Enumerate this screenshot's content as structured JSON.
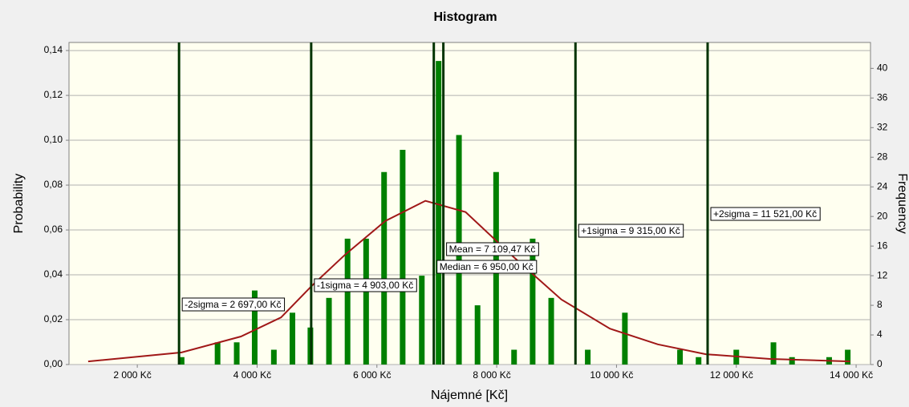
{
  "chart_data": {
    "type": "bar",
    "title": "Histogram",
    "xlabel": "Nájemné [Kč]",
    "ylabel": "Probability",
    "y2label": "Frequency",
    "xlim": [
      860,
      14240
    ],
    "xticks": [
      {
        "value": 2000,
        "label": "2 000 Kč"
      },
      {
        "value": 4000,
        "label": "4 000 Kč"
      },
      {
        "value": 6000,
        "label": "6 000 Kč"
      },
      {
        "value": 8000,
        "label": "8 000 Kč"
      },
      {
        "value": 10000,
        "label": "10 000 Kč"
      },
      {
        "value": 12000,
        "label": "12 000 Kč"
      },
      {
        "value": 14000,
        "label": "14 000 Kč"
      }
    ],
    "ylim": [
      0,
      0.1436
    ],
    "yticks": [
      {
        "value": 0,
        "label": "0,00"
      },
      {
        "value": 0.02,
        "label": "0,02"
      },
      {
        "value": 0.04,
        "label": "0,04"
      },
      {
        "value": 0.06,
        "label": "0,06"
      },
      {
        "value": 0.08,
        "label": "0,08"
      },
      {
        "value": 0.1,
        "label": "0,10"
      },
      {
        "value": 0.12,
        "label": "0,12"
      },
      {
        "value": 0.14,
        "label": "0,14"
      }
    ],
    "y2lim": [
      0,
      43.5
    ],
    "y2ticks": [
      0,
      4,
      8,
      12,
      16,
      20,
      24,
      28,
      32,
      36,
      40
    ],
    "grid": true,
    "series": [
      {
        "type": "bar",
        "axis": "y2",
        "color": "#008000",
        "x": [
          2740,
          3340,
          3660,
          3960,
          4280,
          4590,
          4890,
          5200,
          5510,
          5820,
          6120,
          6430,
          6750,
          7030,
          7370,
          7680,
          7990,
          8290,
          8600,
          8910,
          9520,
          10140,
          11060,
          11370,
          12000,
          12620,
          12930,
          13550,
          13860
        ],
        "values": [
          1,
          3,
          3,
          10,
          2,
          7,
          5,
          9,
          17,
          17,
          26,
          29,
          12,
          41,
          31,
          8,
          26,
          2,
          17,
          9,
          2,
          7,
          2,
          1,
          2,
          3,
          1,
          1,
          2
        ]
      },
      {
        "type": "line",
        "axis": "y",
        "color": "#a01818",
        "x": [
          1180,
          1810,
          2740,
          3730,
          4400,
          4910,
          5470,
          6140,
          6810,
          7480,
          8280,
          9080,
          9890,
          10690,
          11490,
          12560,
          13900
        ],
        "values": [
          0.0014,
          0.003,
          0.0054,
          0.0125,
          0.021,
          0.035,
          0.049,
          0.064,
          0.073,
          0.068,
          0.048,
          0.029,
          0.016,
          0.009,
          0.0046,
          0.0025,
          0.0014
        ]
      }
    ],
    "annotation_color": "#003300",
    "annotations": [
      {
        "x": 2697,
        "label": "-2sigma = 2 697,00 Kč"
      },
      {
        "x": 4903,
        "label": "-1sigma = 4 903,00 Kč"
      },
      {
        "x": 7109.47,
        "label": "Mean = 7 109,47 Kč"
      },
      {
        "x": 6950,
        "label": "Median = 6 950,00 Kč"
      },
      {
        "x": 9315,
        "label": "+1sigma = 9 315,00 Kč"
      },
      {
        "x": 11521,
        "label": "+2sigma = 11 521,00 Kč"
      }
    ]
  }
}
